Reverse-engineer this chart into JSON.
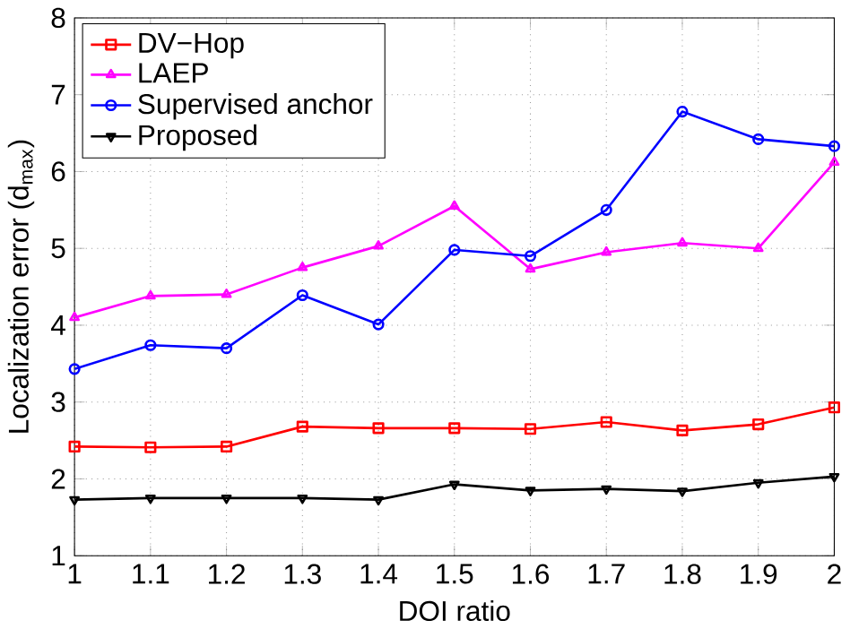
{
  "chart_data": {
    "type": "line",
    "xlabel": "DOI ratio",
    "ylabel": "Localization error (d$_{max}$)",
    "x": [
      1,
      1.1,
      1.2,
      1.3,
      1.4,
      1.5,
      1.6,
      1.7,
      1.8,
      1.9,
      2
    ],
    "series": [
      {
        "name": "DV−Hop",
        "color": "#ff0000",
        "marker": "square",
        "values": [
          2.42,
          2.41,
          2.42,
          2.68,
          2.66,
          2.66,
          2.65,
          2.74,
          2.63,
          2.71,
          2.93
        ]
      },
      {
        "name": "LAEP",
        "color": "#ff00ff",
        "marker": "triangle",
        "values": [
          4.1,
          4.38,
          4.4,
          4.75,
          5.03,
          5.55,
          4.73,
          4.95,
          5.07,
          5.0,
          6.12
        ]
      },
      {
        "name": "Supervised anchor",
        "color": "#0000ff",
        "marker": "circle",
        "values": [
          3.43,
          3.74,
          3.7,
          4.39,
          4.01,
          4.98,
          4.9,
          5.5,
          6.78,
          6.42,
          6.33
        ]
      },
      {
        "name": "Proposed",
        "color": "#000000",
        "marker": "triangle-down",
        "values": [
          1.73,
          1.75,
          1.75,
          1.75,
          1.73,
          1.93,
          1.85,
          1.87,
          1.84,
          1.95,
          2.03
        ]
      }
    ],
    "xlim": [
      1,
      2
    ],
    "ylim": [
      1,
      8
    ],
    "xticks": [
      1,
      1.1,
      1.2,
      1.3,
      1.4,
      1.5,
      1.6,
      1.7,
      1.8,
      1.9,
      2
    ],
    "yticks": [
      1,
      2,
      3,
      4,
      5,
      6,
      7,
      8
    ],
    "grid": true,
    "legend": "top left",
    "line_style": "solid"
  }
}
